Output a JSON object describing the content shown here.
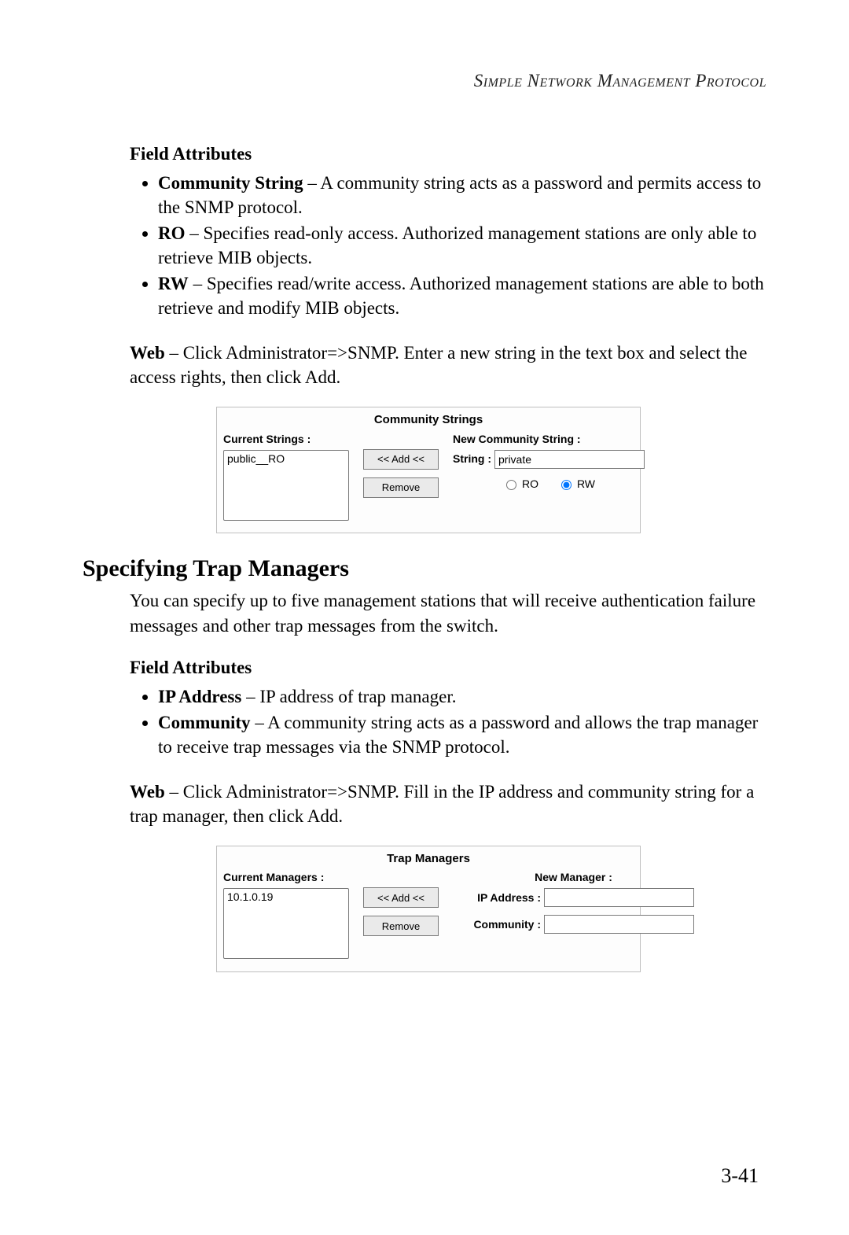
{
  "running_head": "Simple Network Management Protocol",
  "sec1": {
    "fa_heading": "Field Attributes",
    "bullets": [
      {
        "term": "Community String",
        "desc": " – A community string acts as a password and permits access to the SNMP protocol."
      },
      {
        "term": "RO",
        "desc": " – Specifies read-only access. Authorized management stations are only able to retrieve MIB objects."
      },
      {
        "term": "RW",
        "desc": " – Specifies read/write access. Authorized management stations are able to both retrieve and modify MIB objects."
      }
    ],
    "web_term": "Web",
    "web_desc": " – Click Administrator=>SNMP. Enter a new string in the text box and select the access rights, then click Add."
  },
  "shot1": {
    "title": "Community Strings",
    "left_label": "Current Strings :",
    "list_items": [
      "public__RO"
    ],
    "add_label": "<< Add <<",
    "remove_label": "Remove",
    "right_label": "New Community String :",
    "string_label": "String :",
    "string_value": "private",
    "ro_label": "RO",
    "rw_label": "RW",
    "rw_selected": true
  },
  "h2": "Specifying Trap Managers",
  "sec2_intro": "You can specify up to five management stations that will receive authentication failure messages and other trap messages from the switch.",
  "sec2": {
    "fa_heading": "Field Attributes",
    "bullets": [
      {
        "term": "IP Address",
        "desc": " – IP address of trap manager."
      },
      {
        "term": "Community",
        "desc": " – A community string acts as a password and allows the trap manager to receive trap messages via the SNMP protocol."
      }
    ],
    "web_term": "Web",
    "web_desc": " – Click Administrator=>SNMP. Fill in the IP address and community string for a trap manager, then click Add."
  },
  "shot2": {
    "title": "Trap Managers",
    "left_label": "Current Managers :",
    "list_items": [
      "10.1.0.19"
    ],
    "add_label": "<< Add <<",
    "remove_label": "Remove",
    "right_label": "New Manager :",
    "ip_label": "IP Address :",
    "ip_value": "",
    "community_label": "Community :",
    "community_value": ""
  },
  "page_number": "3-41"
}
